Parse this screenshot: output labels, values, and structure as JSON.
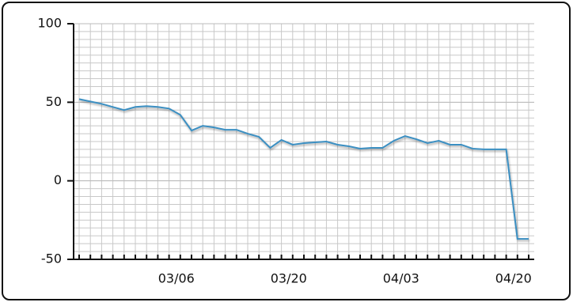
{
  "chart_data": {
    "type": "line",
    "categories": [
      null,
      null,
      null,
      null,
      null,
      null,
      null,
      null,
      null,
      "03/06",
      null,
      null,
      null,
      null,
      null,
      null,
      null,
      null,
      null,
      "03/20",
      null,
      null,
      null,
      null,
      null,
      null,
      null,
      null,
      null,
      "04/03",
      null,
      null,
      null,
      null,
      null,
      null,
      null,
      null,
      null,
      "04/20",
      null
    ],
    "series": [
      {
        "color": "#3b8fc2",
        "values": [
          52,
          50.5,
          49,
          47,
          45,
          47,
          47.5,
          47,
          46,
          42,
          32,
          35,
          34,
          32.5,
          32.5,
          30,
          28,
          21,
          26,
          23,
          24,
          24.5,
          25,
          23,
          22,
          20.5,
          21,
          21,
          25.5,
          28.5,
          26.5,
          24,
          25.5,
          23,
          23,
          20.5,
          20,
          20,
          20,
          -37,
          -37
        ]
      }
    ],
    "ylim": [
      -50,
      100
    ],
    "yticks": [
      -50,
      0,
      50,
      100
    ],
    "grid": true
  }
}
